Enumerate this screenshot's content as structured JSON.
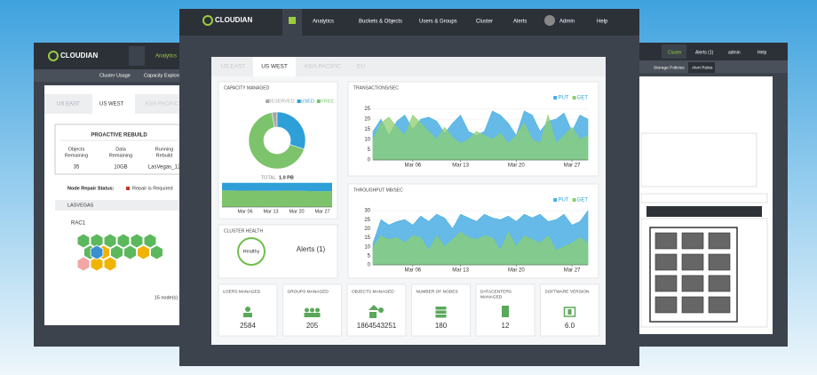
{
  "left_window": {
    "logo": "CLOUDIAN",
    "nav": [
      "Analytics"
    ],
    "subnav": [
      "Cluster Usage",
      "Capacity Explorer"
    ],
    "tabs": [
      "US EAST",
      "US WEST",
      "ASIA PACIFIC"
    ],
    "rebuild": {
      "title": "PROACTIVE REBUILD",
      "items": [
        {
          "label": [
            "Objects",
            "Remaining"
          ],
          "value": 35
        },
        {
          "label": [
            "Data",
            "Remaining"
          ],
          "value": "10GB"
        },
        {
          "label": [
            "Running",
            "Rebuild"
          ],
          "value": "LasVegas_12"
        }
      ]
    },
    "repair_status": "Node Repair Status:",
    "repair_legend": "Repair is Required",
    "datacenter": "LASVEGAS",
    "rack": "RAC1",
    "node_count": "15 node(s)"
  },
  "right_window": {
    "nav": [
      "Cluster",
      "Alerts (1)",
      "admin",
      "Help"
    ],
    "subnav": [
      "Storage Policies",
      "Alert Rules"
    ]
  },
  "main": {
    "logo": "CLOUDIAN",
    "nav": [
      "Analytics",
      "Buckets & Objects",
      "Users & Groups",
      "Cluster",
      "Alerts",
      "Admin",
      "Help"
    ],
    "tabs": [
      "US EAST",
      "US WEST",
      "ASIA PACIFIC",
      "EU"
    ],
    "active_tab": 1,
    "capacity": {
      "title": "CAPACITY MANAGED",
      "type": "pie",
      "categories": [
        "RESERVED",
        "USED",
        "FREE"
      ],
      "colors": [
        "#a6a6a6",
        "#2f9fd8",
        "#7dc36b"
      ],
      "values": [
        3,
        30,
        67
      ],
      "total_label": "TOTAL",
      "total": "1.0 PB",
      "trend": {
        "type": "area",
        "stacked": true,
        "x_labels": [
          "Mar 06",
          "Mar 13",
          "Mar 20",
          "Mar 27"
        ],
        "ylim": [
          0,
          100
        ],
        "series": [
          {
            "name": "FREE",
            "color": "#7dc36b",
            "values": [
              67,
              66,
              66,
              65,
              66,
              65,
              64,
              64
            ]
          },
          {
            "name": "USED",
            "color": "#2f9fd8",
            "values": [
              30,
              31,
              31,
              32,
              31,
              32,
              33,
              33
            ]
          }
        ]
      }
    },
    "health": {
      "title": "CLUSTER HEALTH",
      "status": "Healthy",
      "alerts": "Alerts (1)"
    },
    "transactions": {
      "type": "area",
      "title": "TRANSACTIONS/SEC",
      "xlim": [
        0,
        27
      ],
      "xticks": [
        {
          "value": 5,
          "label": "Mar 06"
        },
        {
          "value": 11,
          "label": "Mar 13"
        },
        {
          "value": 18,
          "label": "Mar 20"
        },
        {
          "value": 25,
          "label": "Mar 27"
        }
      ],
      "ylim": [
        0,
        27
      ],
      "yticks": [
        0,
        5,
        10,
        15,
        20,
        25
      ],
      "series": [
        {
          "name": "PUT",
          "color": "#4aaee3",
          "values": [
            14,
            20,
            12,
            19,
            22,
            15,
            20,
            21,
            19,
            13,
            18,
            22,
            14,
            12,
            14,
            24,
            22,
            18,
            12,
            24,
            22,
            14,
            19,
            20,
            23,
            14,
            22,
            20
          ]
        },
        {
          "name": "GET",
          "color": "#8ccf6f",
          "values": [
            10,
            18,
            21,
            16,
            12,
            22,
            18,
            14,
            10,
            16,
            11,
            8,
            10,
            14,
            12,
            10,
            13,
            8,
            12,
            18,
            10,
            8,
            22,
            8,
            12,
            16,
            10,
            12
          ]
        }
      ]
    },
    "throughput": {
      "type": "area",
      "title": "THROUGHPUT MB/SEC",
      "xlim": [
        0,
        27
      ],
      "xticks": [
        {
          "value": 5,
          "label": "Mar 06"
        },
        {
          "value": 11,
          "label": "Mar 13"
        },
        {
          "value": 18,
          "label": "Mar 20"
        },
        {
          "value": 25,
          "label": "Mar 27"
        }
      ],
      "ylim": [
        0,
        32
      ],
      "yticks": [
        0,
        5,
        10,
        15,
        20,
        25,
        30
      ],
      "series": [
        {
          "name": "PUT",
          "color": "#4aaee3",
          "values": [
            12,
            25,
            22,
            24,
            25,
            22,
            27,
            24,
            28,
            26,
            20,
            28,
            26,
            24,
            28,
            26,
            25,
            27,
            24,
            28,
            26,
            28,
            24,
            25,
            28,
            22,
            24,
            30
          ]
        },
        {
          "name": "GET",
          "color": "#8ccf6f",
          "values": [
            10,
            16,
            14,
            15,
            12,
            16,
            15,
            8,
            16,
            10,
            14,
            18,
            15,
            14,
            16,
            15,
            8,
            18,
            10,
            16,
            14,
            12,
            16,
            8,
            10,
            12,
            15,
            12
          ]
        }
      ]
    },
    "stats": [
      {
        "label": [
          "USERS MANAGED"
        ],
        "value": 2584
      },
      {
        "label": [
          "GROUPS MANAGED"
        ],
        "value": 205
      },
      {
        "label": [
          "OBJECTS MANAGED"
        ],
        "value": 1864543251
      },
      {
        "label": [
          "NUMBER OF NODES"
        ],
        "value": 180
      },
      {
        "label": [
          "DATACENTERS",
          "MANAGED"
        ],
        "value": 12
      },
      {
        "label": [
          "SOFTWARE VERSION"
        ],
        "value": "6.0"
      }
    ]
  }
}
